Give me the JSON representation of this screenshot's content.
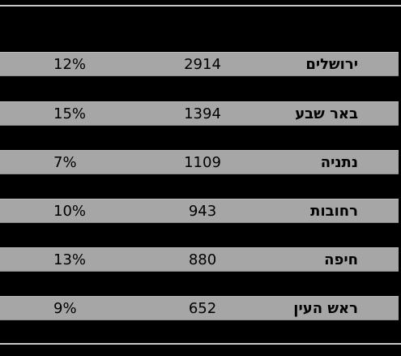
{
  "table": {
    "rows": [
      {
        "city": "ירושלים",
        "count": "2914",
        "percent": "12%"
      },
      {
        "city": "באר שבע",
        "count": "1394",
        "percent": "15%"
      },
      {
        "city": "נתניה",
        "count": "1109",
        "percent": "7%"
      },
      {
        "city": "רחובות",
        "count": "943",
        "percent": "10%"
      },
      {
        "city": "חיפה",
        "count": "880",
        "percent": "13%"
      },
      {
        "city": "ראש העין",
        "count": "652",
        "percent": "9%"
      }
    ]
  }
}
